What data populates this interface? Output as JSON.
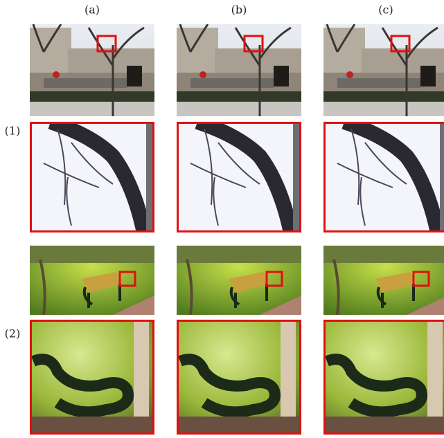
{
  "columns": [
    "(a)",
    "(b)",
    "(c)"
  ],
  "rows": [
    "(1)",
    "(2)"
  ]
}
